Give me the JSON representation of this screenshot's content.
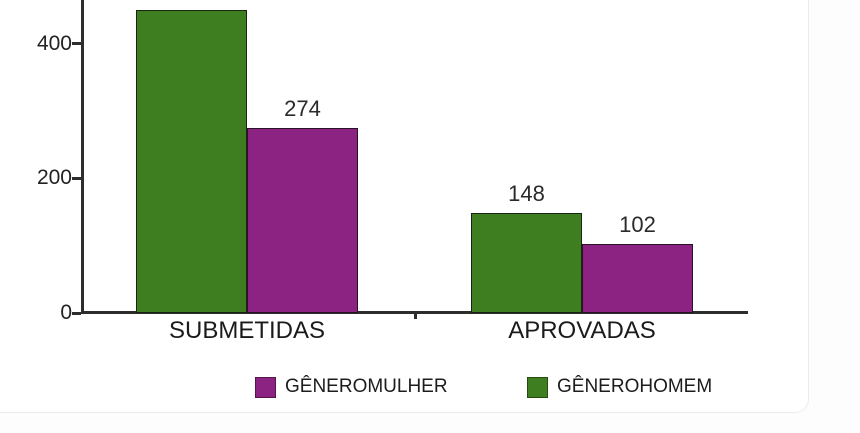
{
  "window": {
    "background": "#ffffff",
    "card_border_color": "#ececec"
  },
  "chart_data": {
    "type": "bar",
    "title": "",
    "xlabel": "",
    "ylabel": "",
    "categories": [
      "SUBMETIDAS",
      "APROVADAS"
    ],
    "series": [
      {
        "name": "GÊNEROHOMEM",
        "color": "#3e7e21",
        "values": [
          450,
          148
        ],
        "value_labels": [
          "",
          "148"
        ]
      },
      {
        "name": "GÊNEROMULHER",
        "color": "#8c2382",
        "values": [
          274,
          102
        ],
        "value_labels": [
          "274",
          "102"
        ]
      }
    ],
    "y_axis": {
      "tick_labels": [
        "0",
        "200",
        "400"
      ],
      "tick_values": [
        0,
        200,
        400
      ],
      "visible_range": [
        0,
        464
      ]
    },
    "grid": false,
    "legend": {
      "position": "bottom",
      "items": [
        {
          "label": "GÊNEROMULHER",
          "color": "#8c2382"
        },
        {
          "label": "GÊNEROHOMEM",
          "color": "#3e7e21"
        }
      ]
    },
    "annotations": {
      "clipped_bar_note": "The GÊNEROHOMEM bar in SUBMETIDAS is clipped by the top edge of the screenshot; its value (≈450) is estimated from the axis and its data label is not visible."
    }
  },
  "colors": {
    "axis": "#2d2d2d",
    "text": "#222222"
  }
}
